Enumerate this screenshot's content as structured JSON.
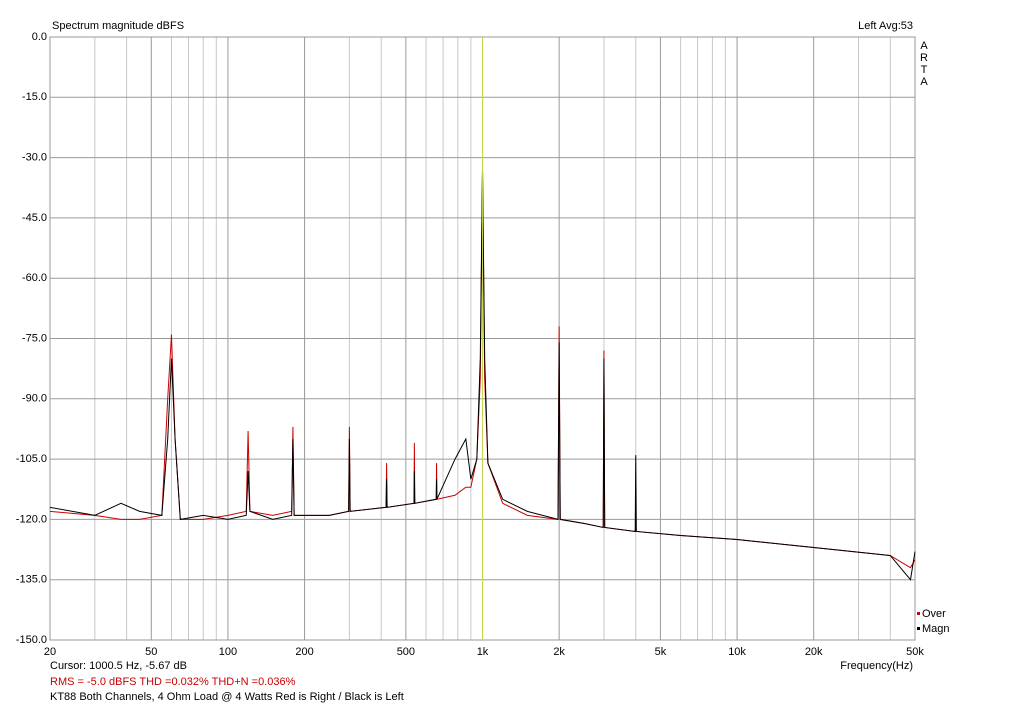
{
  "chart_data": {
    "type": "line",
    "title": "Spectrum magnitude dBFS",
    "status": "Left  Avg:53",
    "brand": "ARTA",
    "x_label": "Frequency(Hz)",
    "cursor_text": "Cursor:  1000.5 Hz, -5.67 dB",
    "cursor_x": 1000.5,
    "cursor_color": "#c8d84a",
    "stats_text": "RMS =  -5.0 dBFS   THD =0.032%   THD+N =0.036%",
    "note": "KT88 Both Channels, 4 Ohm Load @ 4 Watts  Red is Right / Black is Left",
    "log_x": true,
    "grid": true,
    "xlim": [
      20,
      50000
    ],
    "ylim": [
      -150,
      0
    ],
    "xticks": [
      20,
      50,
      100,
      200,
      500,
      {
        "value": 1000,
        "label": "1k"
      },
      {
        "value": 2000,
        "label": "2k"
      },
      {
        "value": 5000,
        "label": "5k"
      },
      {
        "value": 10000,
        "label": "10k"
      },
      {
        "value": 20000,
        "label": "20k"
      },
      {
        "value": 50000,
        "label": "50k"
      }
    ],
    "x_minor_ticks": [
      30,
      40,
      60,
      70,
      80,
      90,
      300,
      400,
      600,
      700,
      800,
      900,
      3000,
      4000,
      6000,
      7000,
      8000,
      9000,
      30000,
      40000
    ],
    "yticks": [
      {
        "value": 0,
        "label": "0.0"
      },
      {
        "value": -15,
        "label": "-15.0"
      },
      {
        "value": -30,
        "label": "-30.0"
      },
      {
        "value": -45,
        "label": "-45.0"
      },
      {
        "value": -60,
        "label": "-60.0"
      },
      {
        "value": -75,
        "label": "-75.0"
      },
      {
        "value": -90,
        "label": "-90.0"
      },
      {
        "value": -105,
        "label": "-105.0"
      },
      {
        "value": -120,
        "label": "-120.0"
      },
      {
        "value": -135,
        "label": "-135.0"
      },
      {
        "value": -150,
        "label": "-150.0"
      }
    ],
    "x": [
      20,
      30,
      38,
      45,
      55,
      58,
      60,
      62,
      65,
      80,
      100,
      118,
      120,
      122,
      150,
      178,
      180,
      182,
      250,
      298,
      300,
      302,
      418,
      420,
      422,
      538,
      540,
      542,
      658,
      660,
      662,
      780,
      860,
      900,
      950,
      980,
      1000,
      1020,
      1050,
      1200,
      1500,
      1980,
      2000,
      2020,
      2500,
      2980,
      3000,
      3020,
      3980,
      4000,
      4020,
      6000,
      10000,
      20000,
      40000,
      48000,
      50000
    ],
    "series": [
      {
        "name": "Over",
        "color": "#cc0000",
        "values": [
          -118,
          -119,
          -120,
          -120,
          -119,
          -90,
          -74,
          -100,
          -120,
          -120,
          -119,
          -118,
          -98,
          -118,
          -119,
          -118,
          -97,
          -119,
          -119,
          -118,
          -97,
          -118,
          -117,
          -106,
          -117,
          -116,
          -101,
          -116,
          -115,
          -106,
          -115,
          -114,
          -112,
          -112,
          -105,
          -85,
          -33,
          -85,
          -106,
          -116,
          -119,
          -120,
          -72,
          -120,
          -121,
          -122,
          -78,
          -122,
          -123,
          -122,
          -123,
          -124,
          -125,
          -127,
          -129,
          -132,
          -130
        ]
      },
      {
        "name": "Magn",
        "color": "#000000",
        "values": [
          -117,
          -119,
          -116,
          -118,
          -119,
          -100,
          -80,
          -100,
          -120,
          -119,
          -120,
          -119,
          -108,
          -118,
          -120,
          -119,
          -100,
          -119,
          -119,
          -118,
          -100,
          -118,
          -117,
          -110,
          -117,
          -116,
          -108,
          -116,
          -115,
          -110,
          -115,
          -105,
          -100,
          -110,
          -105,
          -80,
          -33,
          -80,
          -106,
          -115,
          -118,
          -120,
          -76,
          -120,
          -121,
          -122,
          -80,
          -122,
          -123,
          -104,
          -123,
          -124,
          -125,
          -127,
          -129,
          -135,
          -128
        ]
      }
    ]
  }
}
